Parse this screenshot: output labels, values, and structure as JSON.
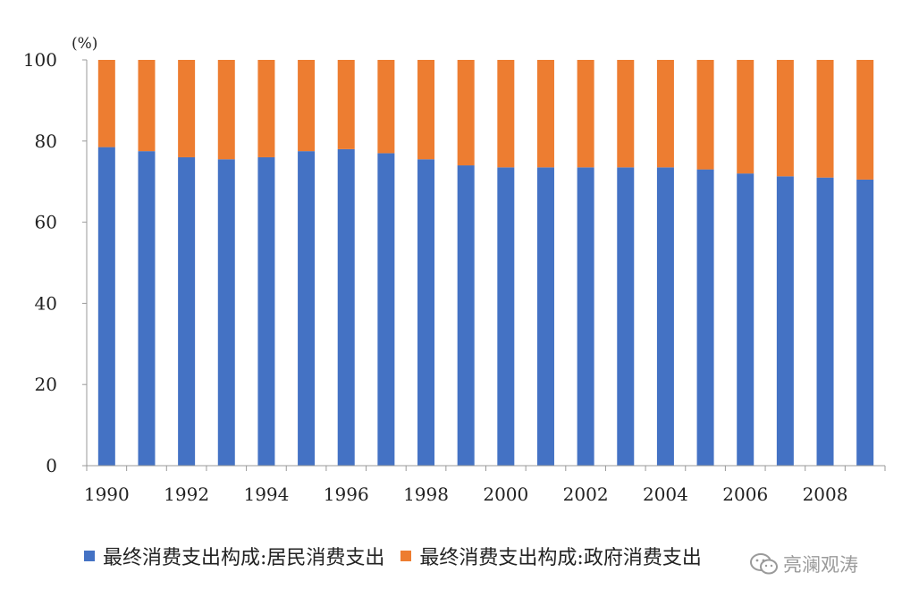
{
  "chart_data": {
    "type": "bar",
    "stacked": true,
    "unit_label": "(%)",
    "x": [
      1990,
      1991,
      1992,
      1993,
      1994,
      1995,
      1996,
      1997,
      1998,
      1999,
      2000,
      2001,
      2002,
      2003,
      2004,
      2005,
      2006,
      2007,
      2008,
      2009
    ],
    "x_tick_labels": [
      "1990",
      "1992",
      "1994",
      "1996",
      "1998",
      "2000",
      "2002",
      "2004",
      "2006",
      "2008"
    ],
    "y_ticks": [
      0,
      20,
      40,
      60,
      80,
      100
    ],
    "ylim": [
      0,
      100
    ],
    "grid": false,
    "legend_position": "bottom",
    "series": [
      {
        "name": "最终消费支出构成:居民消费支出",
        "color": "#4472C4",
        "values": [
          78.5,
          77.5,
          76.0,
          75.5,
          76.0,
          77.5,
          78.0,
          77.0,
          75.5,
          74.0,
          73.5,
          73.5,
          73.5,
          73.5,
          73.5,
          73.0,
          72.0,
          71.3,
          71.0,
          70.5
        ]
      },
      {
        "name": "最终消费支出构成:政府消费支出",
        "color": "#ED7D31",
        "values": [
          21.5,
          22.5,
          24.0,
          24.5,
          24.0,
          22.5,
          22.0,
          23.0,
          24.5,
          26.0,
          26.5,
          26.5,
          26.5,
          26.5,
          26.5,
          27.0,
          28.0,
          28.7,
          29.0,
          29.5
        ]
      }
    ]
  },
  "watermark": {
    "text": "亮澜观涛",
    "icon": "wechat-icon"
  }
}
